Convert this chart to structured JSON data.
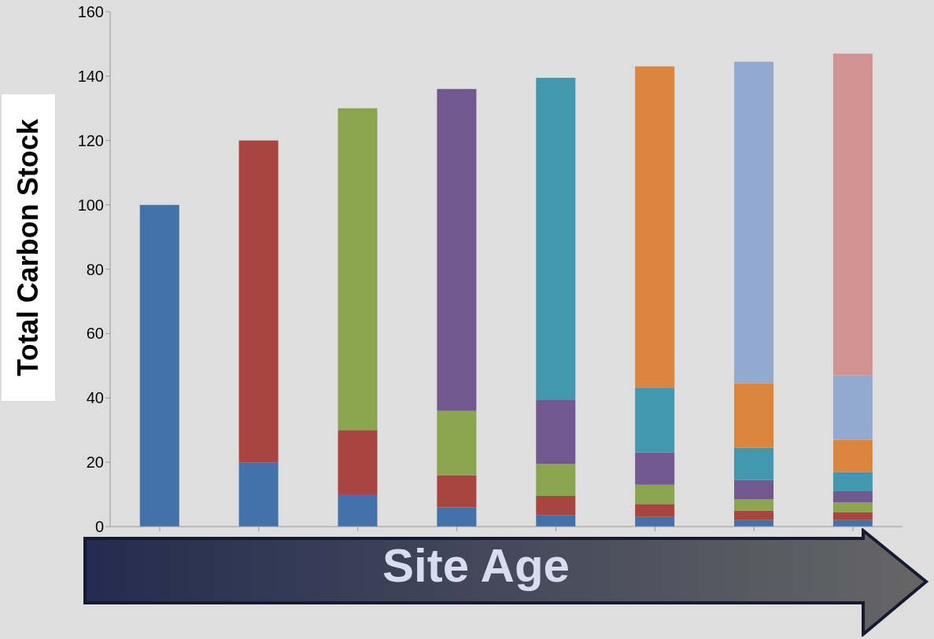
{
  "chart_data": {
    "type": "bar",
    "stacked": true,
    "xlabel": "Site Age",
    "ylabel": "Total Carbon Stock",
    "categories": [
      null,
      null,
      null,
      null,
      null,
      null,
      null,
      null
    ],
    "ylim": [
      0,
      160
    ],
    "yticks": [
      0,
      20,
      40,
      60,
      80,
      100,
      120,
      140,
      160
    ],
    "grid": false,
    "legend": false,
    "series": [
      {
        "color": "#4472a8",
        "values": [
          100,
          20,
          10,
          6,
          3.5,
          3,
          2,
          2
        ]
      },
      {
        "color": "#a94441",
        "values": [
          null,
          100,
          20,
          10,
          6,
          4,
          3,
          2.5
        ]
      },
      {
        "color": "#89a54e",
        "values": [
          null,
          null,
          100,
          20,
          10,
          6,
          3.5,
          3
        ]
      },
      {
        "color": "#71588f",
        "values": [
          null,
          null,
          null,
          100,
          20,
          10,
          6,
          3.5
        ]
      },
      {
        "color": "#4198af",
        "values": [
          null,
          null,
          null,
          null,
          100,
          20,
          10,
          6
        ]
      },
      {
        "color": "#db843d",
        "values": [
          null,
          null,
          null,
          null,
          null,
          100,
          20,
          10
        ]
      },
      {
        "color": "#93a9cf",
        "values": [
          null,
          null,
          null,
          null,
          null,
          null,
          100,
          20
        ]
      },
      {
        "color": "#d19392",
        "values": [
          null,
          null,
          null,
          null,
          null,
          null,
          null,
          100
        ]
      }
    ]
  }
}
